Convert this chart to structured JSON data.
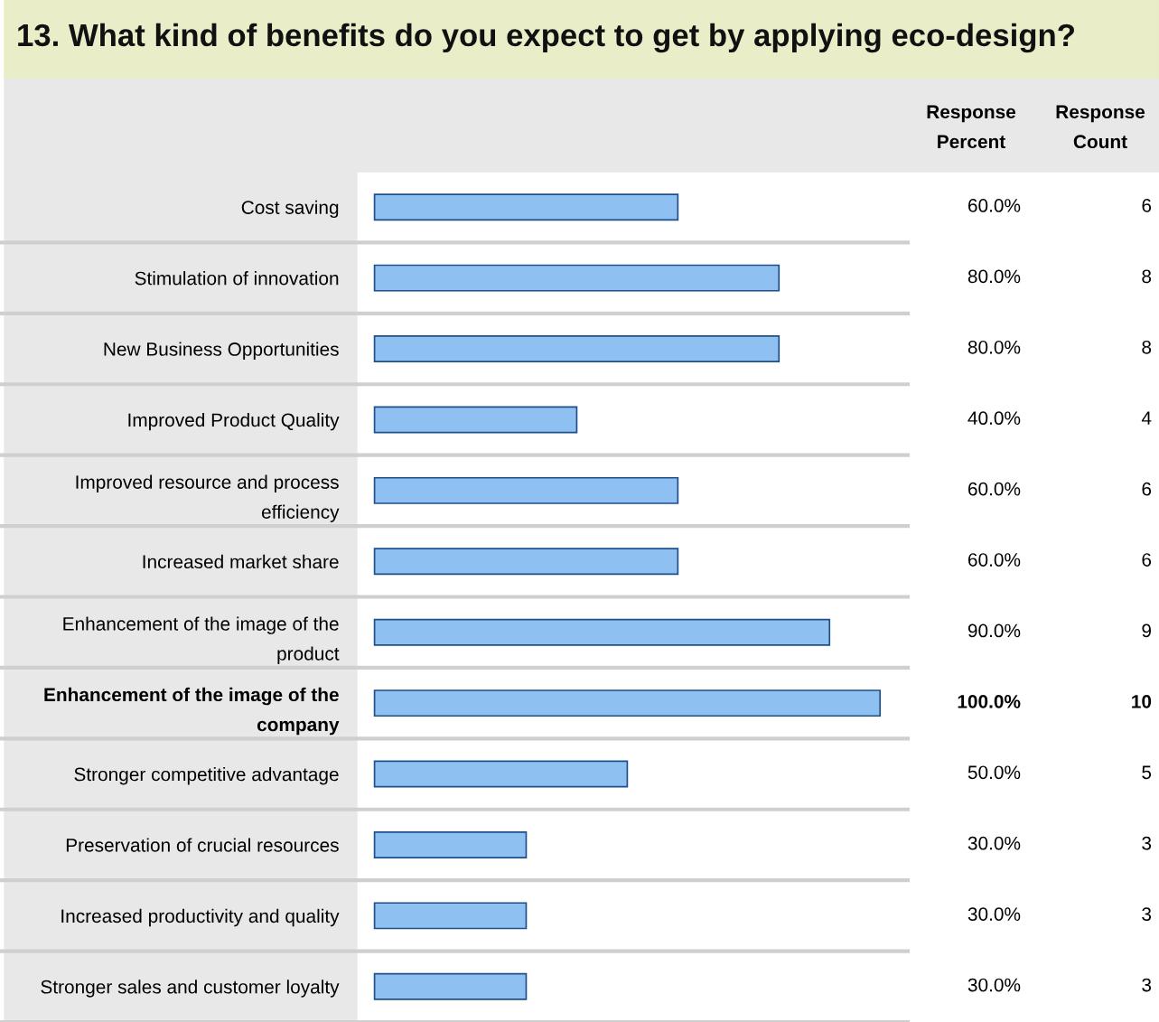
{
  "chart_data": {
    "type": "bar",
    "orientation": "horizontal",
    "title": "13. What kind of benefits do you expect to get by applying eco-design?",
    "categories": [
      "Cost saving",
      "Stimulation of innovation",
      "New Business Opportunities",
      "Improved Product Quality",
      "Improved resource and process efficiency",
      "Increased market share",
      "Enhancement of the image of the product",
      "Enhancement of the image of the company",
      "Stronger competitive advantage",
      "Preservation of crucial resources",
      "Increased productivity and quality",
      "Stronger sales and customer loyalty"
    ],
    "series": [
      {
        "name": "Response Percent",
        "color": "#8ec0f2",
        "values": [
          60.0,
          80.0,
          80.0,
          40.0,
          60.0,
          60.0,
          90.0,
          100.0,
          50.0,
          30.0,
          30.0,
          30.0
        ],
        "value_labels": [
          "60.0%",
          "80.0%",
          "80.0%",
          "40.0%",
          "60.0%",
          "60.0%",
          "90.0%",
          "100.0%",
          "50.0%",
          "30.0%",
          "30.0%",
          "30.0%"
        ]
      }
    ],
    "annotations": [
      "Response Count",
      "6",
      "8",
      "8",
      "4",
      "6",
      "6",
      "9",
      "10",
      "5",
      "3",
      "3",
      "3"
    ]
  }
}
